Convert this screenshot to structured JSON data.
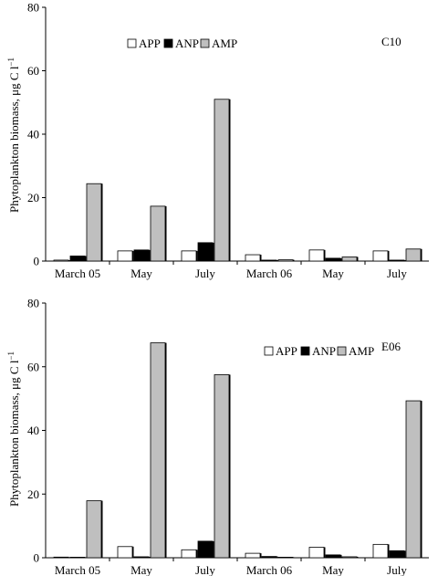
{
  "chart_data": [
    {
      "type": "bar",
      "panel_label": "C10",
      "ylabel": "Phytoplankton biomass, μg C l",
      "ylabel_sup": "−1",
      "categories": [
        "March 05",
        "May",
        "July",
        "March 06",
        "May",
        "July"
      ],
      "series": [
        {
          "name": "APP",
          "color": "#ffffff",
          "values": [
            0.3,
            3.2,
            3.2,
            2.0,
            3.5,
            3.2
          ]
        },
        {
          "name": "ANP",
          "color": "#000000",
          "values": [
            1.6,
            3.5,
            5.8,
            0.3,
            0.9,
            0.3
          ]
        },
        {
          "name": "AMP",
          "color": "#bfbfbf",
          "values": [
            24.4,
            17.3,
            51.0,
            0.4,
            1.3,
            3.8
          ]
        }
      ],
      "ylim": [
        0,
        80
      ],
      "yticks": [
        "0",
        "20",
        "40",
        "60",
        "80"
      ],
      "legend_placement": "top-left"
    },
    {
      "type": "bar",
      "panel_label": "E06",
      "ylabel": "Phytoplankton biomass, μg C l",
      "ylabel_sup": "−1",
      "categories": [
        "March 05",
        "May",
        "July",
        "March 06",
        "May",
        "July"
      ],
      "series": [
        {
          "name": "APP",
          "color": "#ffffff",
          "values": [
            0.2,
            3.5,
            2.5,
            1.4,
            3.3,
            4.2
          ]
        },
        {
          "name": "ANP",
          "color": "#000000",
          "values": [
            0.1,
            0.3,
            5.2,
            0.4,
            0.9,
            2.2
          ]
        },
        {
          "name": "AMP",
          "color": "#bfbfbf",
          "values": [
            17.9,
            67.5,
            57.5,
            0.1,
            0.3,
            49.3
          ]
        }
      ],
      "ylim": [
        0,
        80
      ],
      "yticks": [
        "0",
        "20",
        "40",
        "60",
        "80"
      ],
      "legend_placement": "top-right"
    }
  ]
}
